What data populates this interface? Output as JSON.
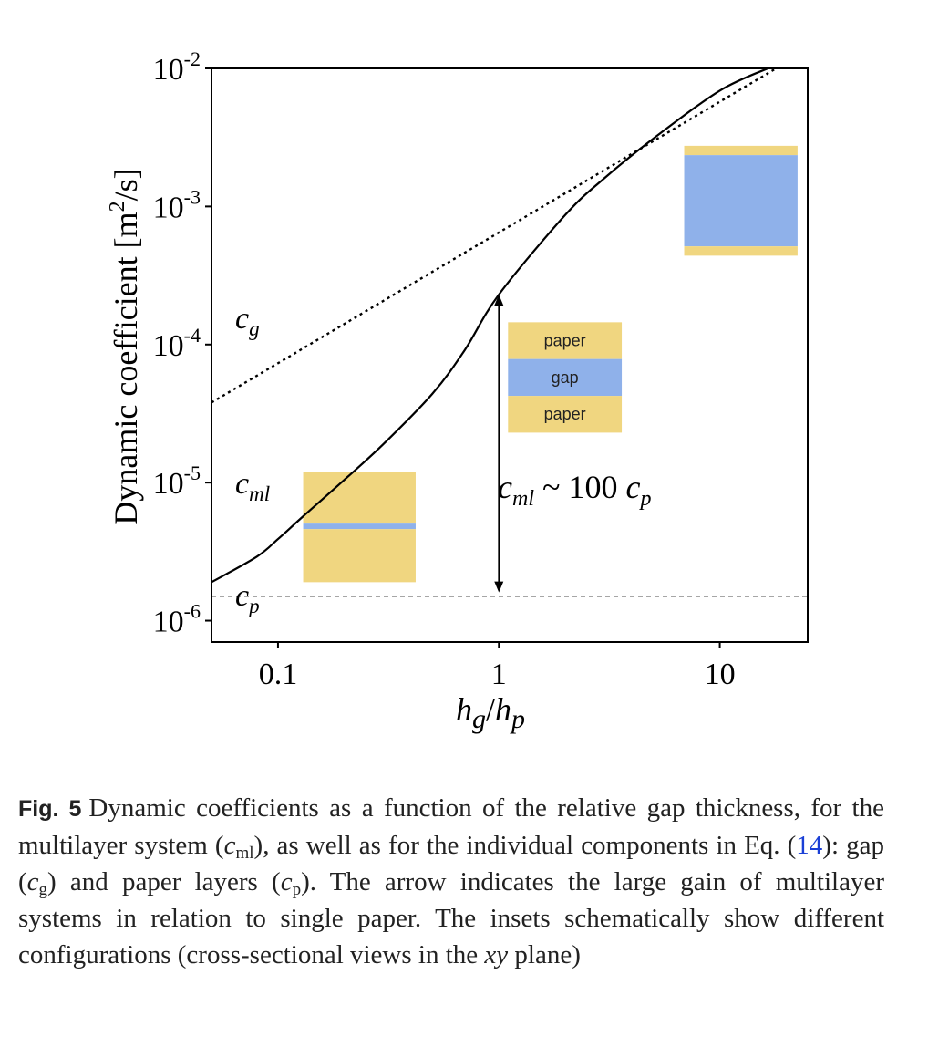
{
  "chart_data": {
    "type": "line",
    "xlabel_parts": {
      "h1": "h",
      "s1": "g",
      "slash": "/",
      "h2": "h",
      "s2": "p"
    },
    "ylabel_parts": {
      "pre": "Dynamic coefficient [m",
      "sup": "2",
      "post": "/s]"
    },
    "x_scale": "log",
    "y_scale": "log",
    "xlim": [
      0.05,
      25
    ],
    "ylim": [
      7e-07,
      0.01
    ],
    "x_ticks": [
      {
        "value": 0.1,
        "label": "0.1"
      },
      {
        "value": 1,
        "label": "1"
      },
      {
        "value": 10,
        "label": "10"
      }
    ],
    "y_ticks": [
      {
        "value": 0.01,
        "base": "10",
        "exp": "-2"
      },
      {
        "value": 0.001,
        "base": "10",
        "exp": "-3"
      },
      {
        "value": 0.0001,
        "base": "10",
        "exp": "-4"
      },
      {
        "value": 1e-05,
        "base": "10",
        "exp": "-5"
      },
      {
        "value": 1e-06,
        "base": "10",
        "exp": "-6"
      }
    ],
    "series": [
      {
        "label": {
          "base": "c",
          "sub": "ml"
        },
        "style": "solid",
        "color": "#000000",
        "x": [
          0.05,
          0.08,
          0.1,
          0.13,
          0.2,
          0.3,
          0.5,
          0.7,
          1,
          2,
          3,
          5,
          10,
          17
        ],
        "y": [
          1.9e-06,
          2.9e-06,
          3.9e-06,
          5.7e-06,
          1.05e-05,
          1.9e-05,
          4.4e-05,
          9.1e-05,
          0.00023,
          0.00087,
          0.0016,
          0.0031,
          0.0069,
          0.0102
        ]
      },
      {
        "label": {
          "base": "c",
          "sub": "g"
        },
        "style": "dotted",
        "color": "#000000",
        "x": [
          0.05,
          18
        ],
        "y": [
          3.8e-05,
          0.01
        ]
      },
      {
        "label": {
          "base": "c",
          "sub": "p"
        },
        "style": "dashed",
        "color": "#888888",
        "x": [
          0.05,
          25
        ],
        "y": [
          1.5e-06,
          1.5e-06
        ]
      }
    ],
    "annotation": {
      "text_base1": "c",
      "text_sub1": "ml",
      "text_mid": " ~ 100 ",
      "text_base2": "c",
      "text_sub2": "p",
      "arrow_x": 1,
      "arrow_y": [
        1.6e-06,
        0.00023
      ]
    },
    "insets": [
      {
        "name": "thin-gap",
        "x_range": [
          0.13,
          0.42
        ],
        "y_range": [
          1.9e-06,
          1.2e-05
        ],
        "layers": [
          {
            "kind": "paper",
            "fraction": 0.47,
            "label": ""
          },
          {
            "kind": "gap",
            "fraction": 0.05,
            "label": ""
          },
          {
            "kind": "paper",
            "fraction": 0.48,
            "label": ""
          }
        ]
      },
      {
        "name": "equal-layers",
        "x_range": [
          1.1,
          3.6
        ],
        "y_range": [
          2.3e-05,
          0.000145
        ],
        "layers": [
          {
            "kind": "paper",
            "fraction": 0.333,
            "label": "paper"
          },
          {
            "kind": "gap",
            "fraction": 0.334,
            "label": "gap"
          },
          {
            "kind": "paper",
            "fraction": 0.333,
            "label": "paper"
          }
        ]
      },
      {
        "name": "thick-gap",
        "x_range": [
          6.9,
          22.5
        ],
        "y_range": [
          0.00044,
          0.00275
        ],
        "layers": [
          {
            "kind": "paper",
            "fraction": 0.085,
            "label": ""
          },
          {
            "kind": "gap",
            "fraction": 0.83,
            "label": ""
          },
          {
            "kind": "paper",
            "fraction": 0.085,
            "label": ""
          }
        ]
      }
    ],
    "colors": {
      "paper": "#f0d680",
      "gap": "#8fb1ea",
      "axis": "#000000"
    }
  },
  "caption": {
    "label": "Fig. 5",
    "t1": "Dynamic coefficients as a function of the relative gap thickness, for the multilayer system (",
    "c1": "c",
    "s1": "ml",
    "t2": "), as well as for the individual components in Eq. (",
    "ref": "14",
    "t3": "): gap (",
    "c2": "c",
    "s2": "g",
    "t4": ") and paper layers (",
    "c3": "c",
    "s3": "p",
    "t5": "). The arrow indicates the large gain of multilayer systems in relation to single paper. The insets schematically show different configurations (cross-sectional views in the ",
    "xy": "xy",
    "t6": " plane)"
  }
}
